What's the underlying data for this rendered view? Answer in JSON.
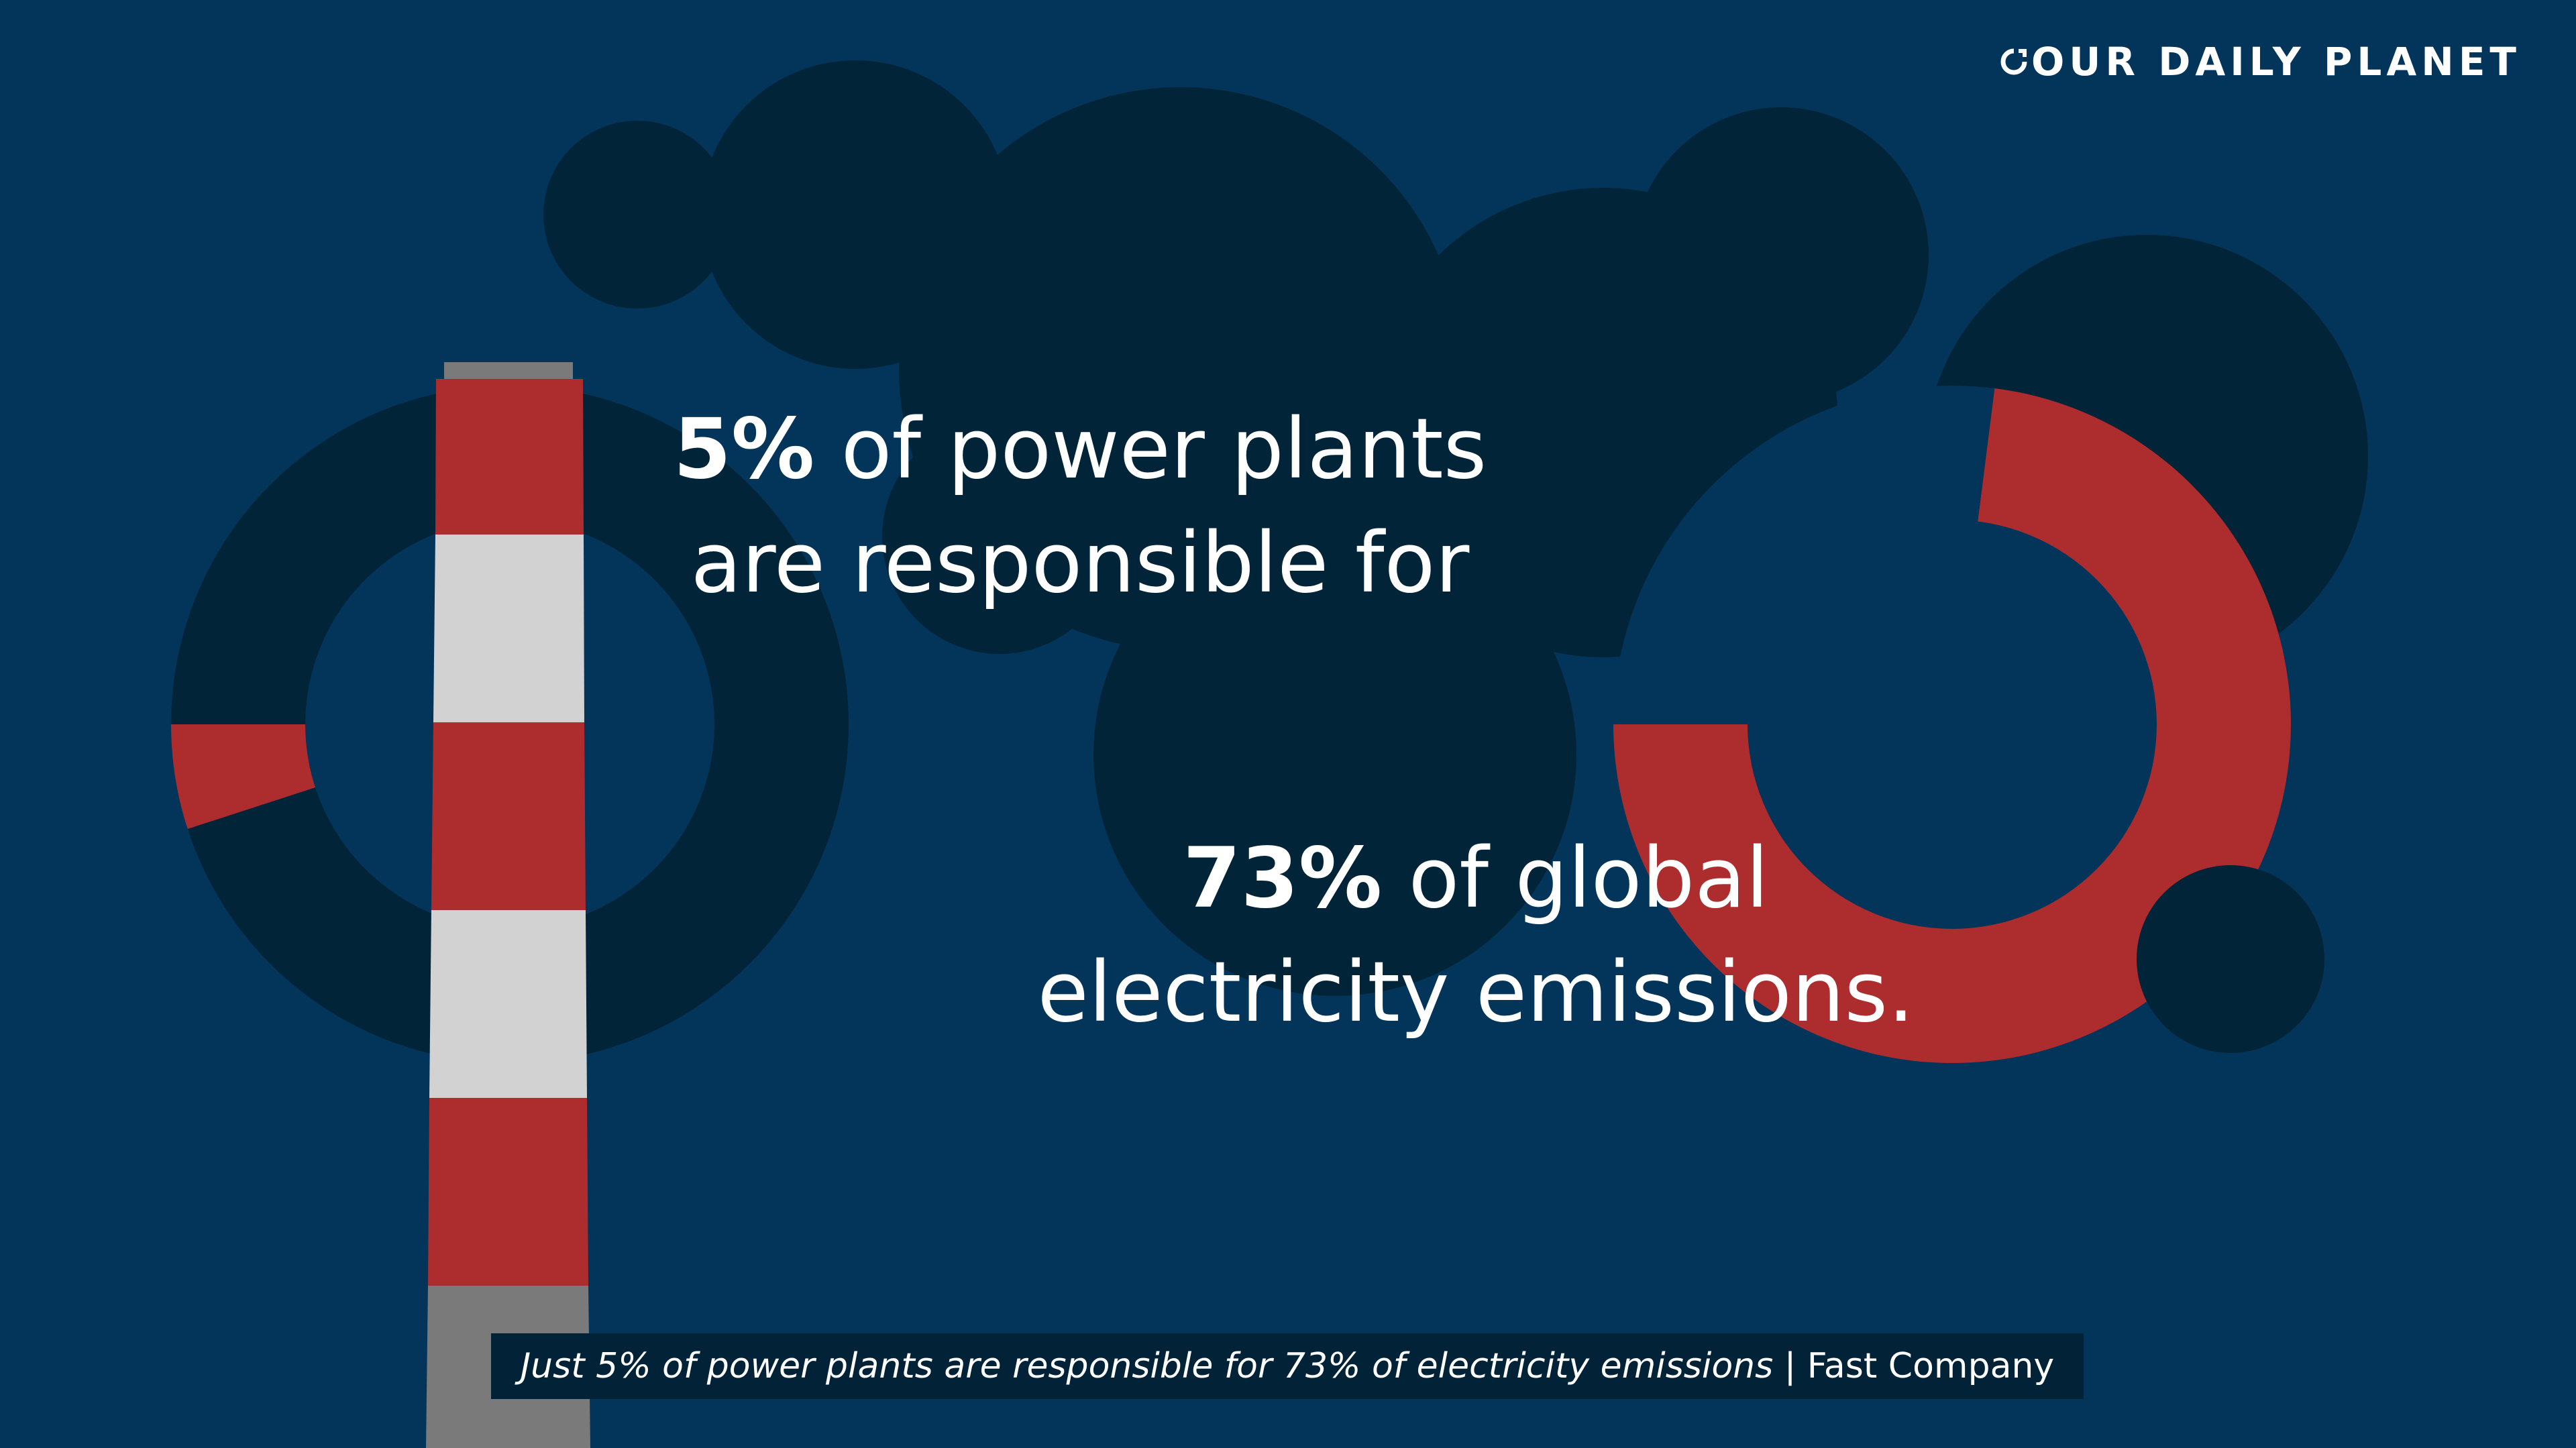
{
  "brand": {
    "logo_text": "OUR DAILY PLANET"
  },
  "headline": {
    "part1_bold": "5%",
    "part1_line1_rest": " of power plants",
    "part1_line2": "are responsible for",
    "part2_bold": "73%",
    "part2_line1_rest": " of global",
    "part2_line2": "electricity emissions."
  },
  "caption": {
    "article_title": "Just 5% of power plants are responsible for 73% of electricity emissions",
    "separator": " | ",
    "source": "Fast Company"
  },
  "colors": {
    "background": "#033459",
    "smoke": "#022438",
    "accent_red": "#ad2d2f",
    "stack_white": "#d2d2d2",
    "stack_gray": "#7a7a7a",
    "text": "#ffffff"
  },
  "chart_data": [
    {
      "type": "pie",
      "style": "donut",
      "title": "",
      "slices": [
        {
          "label": "",
          "value": 5,
          "color": "#ad2d2f"
        },
        {
          "label": "",
          "value": 95,
          "color": "#022438"
        }
      ]
    },
    {
      "type": "pie",
      "style": "donut",
      "title": "",
      "slices": [
        {
          "label": "",
          "value": 73,
          "color": "#ad2d2f"
        },
        {
          "label": "",
          "value": 27,
          "color": "#033459"
        }
      ]
    }
  ]
}
